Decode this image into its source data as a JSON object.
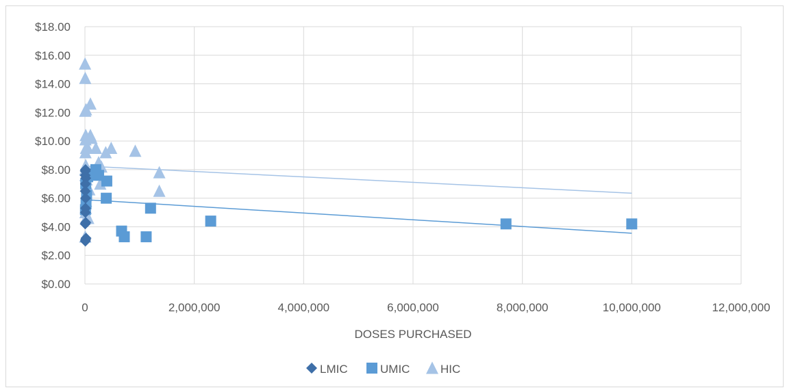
{
  "chart_data": {
    "type": "scatter",
    "title": "",
    "xlabel": "DOSES PURCHASED",
    "ylabel": "",
    "xlim": [
      0,
      12000000
    ],
    "ylim": [
      0,
      18
    ],
    "x_ticks": [
      0,
      2000000,
      4000000,
      6000000,
      8000000,
      10000000,
      12000000
    ],
    "x_tick_labels": [
      "0",
      "2,000,000",
      "4,000,000",
      "6,000,000",
      "8,000,000",
      "10,000,000",
      "12,000,000"
    ],
    "y_ticks": [
      0,
      2,
      4,
      6,
      8,
      10,
      12,
      14,
      16,
      18
    ],
    "y_tick_labels": [
      "$0.00",
      "$2.00",
      "$4.00",
      "$6.00",
      "$8.00",
      "$10.00",
      "$12.00",
      "$14.00",
      "$16.00",
      "$18.00"
    ],
    "grid": "vertical and horizontal",
    "legend_position": "bottom",
    "series": [
      {
        "name": "LMIC",
        "marker": "diamond",
        "color": "#3e6fa8",
        "points": [
          [
            8000,
            3.0
          ],
          [
            12000,
            3.1
          ],
          [
            20000,
            3.2
          ],
          [
            5000,
            4.2
          ],
          [
            15000,
            4.3
          ],
          [
            8000,
            5.0
          ],
          [
            10000,
            5.3
          ],
          [
            12000,
            6.0
          ],
          [
            6000,
            6.5
          ],
          [
            9000,
            7.0
          ],
          [
            15000,
            7.4
          ],
          [
            5000,
            7.6
          ],
          [
            7000,
            7.9
          ],
          [
            10000,
            8.0
          ]
        ]
      },
      {
        "name": "UMIC",
        "marker": "square",
        "color": "#5b9bd5",
        "points": [
          [
            10000,
            5.2
          ],
          [
            20000,
            5.6
          ],
          [
            30000,
            6.2
          ],
          [
            15000,
            7.0
          ],
          [
            50000,
            7.5
          ],
          [
            200000,
            8.0
          ],
          [
            250000,
            7.6
          ],
          [
            400000,
            7.2
          ],
          [
            390000,
            6.0
          ],
          [
            670000,
            3.7
          ],
          [
            720000,
            3.3
          ],
          [
            1120000,
            3.3
          ],
          [
            1200000,
            5.3
          ],
          [
            2300000,
            4.4
          ],
          [
            7700000,
            4.2
          ],
          [
            10000000,
            4.2
          ]
        ]
      },
      {
        "name": "HIC",
        "marker": "triangle",
        "color": "#a5c3e6",
        "points": [
          [
            5000,
            3.3
          ],
          [
            20000,
            4.6
          ],
          [
            60000,
            4.6
          ],
          [
            10000,
            5.0
          ],
          [
            15000,
            5.3
          ],
          [
            20000,
            5.8
          ],
          [
            30000,
            6.2
          ],
          [
            50000,
            6.7
          ],
          [
            80000,
            6.6
          ],
          [
            30000,
            7.3
          ],
          [
            10000,
            7.6
          ],
          [
            5000,
            8.0
          ],
          [
            15000,
            8.3
          ],
          [
            10000,
            9.2
          ],
          [
            20000,
            9.5
          ],
          [
            40000,
            9.6
          ],
          [
            10000,
            10.1
          ],
          [
            15000,
            10.4
          ],
          [
            100000,
            10.4
          ],
          [
            120000,
            10.2
          ],
          [
            200000,
            9.5
          ],
          [
            250000,
            8.5
          ],
          [
            280000,
            7.0
          ],
          [
            300000,
            8.2
          ],
          [
            380000,
            9.2
          ],
          [
            480000,
            9.5
          ],
          [
            920000,
            9.3
          ],
          [
            1360000,
            7.8
          ],
          [
            1360000,
            6.5
          ],
          [
            100000,
            12.6
          ],
          [
            20000,
            12.2
          ],
          [
            5000,
            12.1
          ],
          [
            5000,
            14.4
          ],
          [
            2000,
            15.4
          ]
        ]
      }
    ],
    "trendlines": [
      {
        "series": "UMIC",
        "color": "#5b9bd5",
        "from": [
          0,
          5.9
        ],
        "to": [
          10000000,
          3.55
        ]
      },
      {
        "series": "HIC",
        "color": "#a5c3e6",
        "from": [
          0,
          8.25
        ],
        "to": [
          10000000,
          6.35
        ]
      }
    ]
  }
}
